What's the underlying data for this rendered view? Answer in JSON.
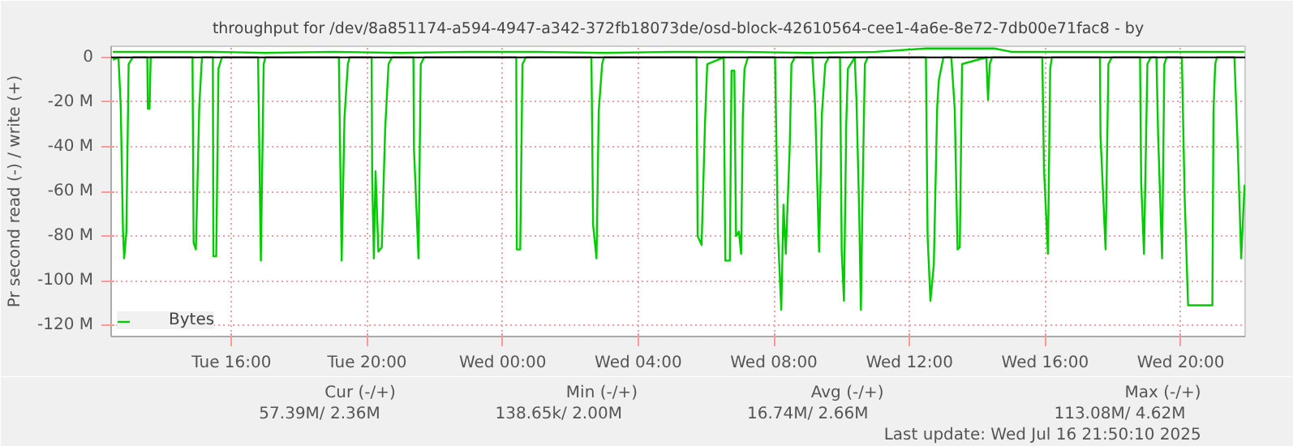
{
  "chart_data": {
    "type": "line",
    "title": "throughput for /dev/8a851174-a594-4947-a342-372fb18073de/osd-block-42610564-cee1-4a6e-8e72-7db00e71fac8 - by",
    "ylabel": "Pr second read (-) / write (+)",
    "xlim": [
      "2025-07-15T12:27",
      "2025-07-16T21:54"
    ],
    "xticks": [
      {
        "value": "2025-07-15T16:00",
        "label": "Tue 16:00"
      },
      {
        "value": "2025-07-15T20:00",
        "label": "Tue 20:00"
      },
      {
        "value": "2025-07-16T00:00",
        "label": "Wed 00:00"
      },
      {
        "value": "2025-07-16T04:00",
        "label": "Wed 04:00"
      },
      {
        "value": "2025-07-16T08:00",
        "label": "Wed 08:00"
      },
      {
        "value": "2025-07-16T12:00",
        "label": "Wed 12:00"
      },
      {
        "value": "2025-07-16T16:00",
        "label": "Wed 16:00"
      },
      {
        "value": "2025-07-16T20:00",
        "label": "Wed 20:00"
      }
    ],
    "ylim": [
      -125,
      5
    ],
    "yticks": [
      {
        "value": -120,
        "label": "-120 M"
      },
      {
        "value": -100,
        "label": "-100 M"
      },
      {
        "value": -80,
        "label": "-80 M"
      },
      {
        "value": -60,
        "label": "-60 M"
      },
      {
        "value": -40,
        "label": "-40 M"
      },
      {
        "value": -20,
        "label": "-20 M"
      },
      0
    ],
    "grid": true,
    "legend": "bottom left",
    "line_style": "solid",
    "marker": "none",
    "ref_lines": [
      {
        "axis": "y",
        "value": 0,
        "color": "#000000"
      }
    ],
    "series": [
      {
        "name": "Bytes",
        "color": "#00cc00",
        "x": [
          "2025-07-15T12:30",
          "2025-07-15T12:40",
          "2025-07-15T12:44",
          "2025-07-15T12:48",
          "2025-07-15T12:50",
          "2025-07-15T12:54",
          "2025-07-15T12:58",
          "2025-07-15T13:05",
          "2025-07-15T13:31",
          "2025-07-15T13:32",
          "2025-07-15T13:35",
          "2025-07-15T13:37",
          "2025-07-15T14:51",
          "2025-07-15T14:53",
          "2025-07-15T14:57",
          "2025-07-15T15:03",
          "2025-07-15T15:07",
          "2025-07-15T15:08",
          "2025-07-15T15:27",
          "2025-07-15T15:28",
          "2025-07-15T15:33",
          "2025-07-15T15:37",
          "2025-07-15T15:43",
          "2025-07-15T16:47",
          "2025-07-15T16:52",
          "2025-07-15T16:57",
          "2025-07-15T17:00",
          "2025-07-15T19:10",
          "2025-07-15T19:15",
          "2025-07-15T19:20",
          "2025-07-15T19:26",
          "2025-07-15T19:29",
          "2025-07-15T20:08",
          "2025-07-15T20:09",
          "2025-07-15T20:12",
          "2025-07-15T20:15",
          "2025-07-15T20:20",
          "2025-07-15T20:26",
          "2025-07-15T20:32",
          "2025-07-15T20:38",
          "2025-07-15T20:44",
          "2025-07-15T21:22",
          "2025-07-15T21:23",
          "2025-07-15T21:31",
          "2025-07-15T21:35",
          "2025-07-15T21:41",
          "2025-07-16T00:24",
          "2025-07-16T00:25",
          "2025-07-16T00:31",
          "2025-07-16T00:35",
          "2025-07-16T00:41",
          "2025-07-16T02:37",
          "2025-07-16T02:40",
          "2025-07-16T02:46",
          "2025-07-16T02:50",
          "2025-07-16T02:56",
          "2025-07-16T02:59",
          "2025-07-16T05:43",
          "2025-07-16T05:45",
          "2025-07-16T05:52",
          "2025-07-16T05:58",
          "2025-07-16T06:02",
          "2025-07-16T06:31",
          "2025-07-16T06:34",
          "2025-07-16T06:42",
          "2025-07-16T06:45",
          "2025-07-16T06:50",
          "2025-07-16T06:53",
          "2025-07-16T06:58",
          "2025-07-16T07:02",
          "2025-07-16T07:05",
          "2025-07-16T07:08",
          "2025-07-16T07:14",
          "2025-07-16T08:02",
          "2025-07-16T08:07",
          "2025-07-16T08:13",
          "2025-07-16T08:17",
          "2025-07-16T08:21",
          "2025-07-16T08:28",
          "2025-07-16T08:31",
          "2025-07-16T08:37",
          "2025-07-16T09:08",
          "2025-07-16T09:13",
          "2025-07-16T09:20",
          "2025-07-16T09:25",
          "2025-07-16T09:31",
          "2025-07-16T09:37",
          "2025-07-16T09:57",
          "2025-07-16T10:00",
          "2025-07-16T10:04",
          "2025-07-16T10:08",
          "2025-07-16T10:11",
          "2025-07-16T10:23",
          "2025-07-16T10:26",
          "2025-07-16T10:31",
          "2025-07-16T10:34",
          "2025-07-16T10:37",
          "2025-07-16T10:41",
          "2025-07-16T10:46",
          "2025-07-16T12:29",
          "2025-07-16T12:32",
          "2025-07-16T12:37",
          "2025-07-16T12:43",
          "2025-07-16T12:49",
          "2025-07-16T12:52",
          "2025-07-16T13:00",
          "2025-07-16T13:14",
          "2025-07-16T13:20",
          "2025-07-16T13:25",
          "2025-07-16T13:29",
          "2025-07-16T13:33",
          "2025-07-16T14:16",
          "2025-07-16T14:19",
          "2025-07-16T14:22",
          "2025-07-16T14:26",
          "2025-07-16T15:55",
          "2025-07-16T15:58",
          "2025-07-16T16:05",
          "2025-07-16T16:09",
          "2025-07-16T16:12",
          "2025-07-16T17:37",
          "2025-07-16T17:38",
          "2025-07-16T17:47",
          "2025-07-16T17:52",
          "2025-07-16T17:58",
          "2025-07-16T18:48",
          "2025-07-16T18:50",
          "2025-07-16T18:55",
          "2025-07-16T19:01",
          "2025-07-16T19:07",
          "2025-07-16T19:17",
          "2025-07-16T19:20",
          "2025-07-16T19:27",
          "2025-07-16T19:31",
          "2025-07-16T19:35",
          "2025-07-16T20:02",
          "2025-07-16T20:07",
          "2025-07-16T20:13",
          "2025-07-16T20:56",
          "2025-07-16T20:58",
          "2025-07-16T21:01",
          "2025-07-16T21:04",
          "2025-07-16T21:35",
          "2025-07-16T21:41",
          "2025-07-16T21:47",
          "2025-07-16T21:53"
        ],
        "values": [
          -1,
          0,
          -22,
          -78,
          -90,
          -78,
          -3,
          0,
          0,
          -23,
          -23,
          0,
          0,
          -83,
          -86,
          -22,
          -3,
          0,
          0,
          -89,
          -89,
          -5,
          0,
          0,
          -91,
          -3,
          0,
          0,
          -91,
          -27,
          -3,
          0,
          0,
          -53,
          -90,
          -51,
          -87,
          -85,
          -32,
          -3,
          0,
          0,
          -41,
          -90,
          -3,
          0,
          0,
          -86,
          -86,
          -3,
          0,
          0,
          -75,
          -90,
          -24,
          -3,
          0,
          0,
          -80,
          -84,
          -30,
          -3,
          0,
          -91,
          -91,
          -6,
          -6,
          -80,
          -78,
          -88,
          -26,
          -5,
          0,
          0,
          -78,
          -113,
          -66,
          -88,
          -40,
          -3,
          0,
          0,
          -22,
          -87,
          -25,
          -3,
          0,
          0,
          -87,
          -109,
          -30,
          -5,
          0,
          -18,
          -70,
          -113,
          -60,
          -3,
          0,
          0,
          -80,
          -109,
          -93,
          -22,
          -10,
          0,
          0,
          -23,
          -86,
          -85,
          -3,
          0,
          -19,
          -3,
          0,
          0,
          -50,
          -88,
          -5,
          0,
          0,
          -35,
          -86,
          -3,
          0,
          0,
          -56,
          -88,
          -3,
          0,
          0,
          -35,
          -90,
          -3,
          0,
          0,
          -63,
          -111,
          -111,
          -24,
          -3,
          0,
          0,
          -41,
          -90,
          -57
        ]
      },
      {
        "color": "#00cc00",
        "x": [
          "2025-07-15T12:30",
          "2025-07-15T14:00",
          "2025-07-15T15:30",
          "2025-07-15T17:00",
          "2025-07-15T19:00",
          "2025-07-15T21:00",
          "2025-07-15T23:00",
          "2025-07-16T01:00",
          "2025-07-16T03:00",
          "2025-07-16T05:00",
          "2025-07-16T07:00",
          "2025-07-16T09:00",
          "2025-07-16T11:00",
          "2025-07-16T12:30",
          "2025-07-16T14:30",
          "2025-07-16T15:00",
          "2025-07-16T17:00",
          "2025-07-16T19:00",
          "2025-07-16T21:53"
        ],
        "values": [
          2.5,
          2.5,
          2.5,
          2.0,
          2.5,
          2.0,
          2.5,
          2.5,
          2.0,
          2.5,
          2.5,
          2.0,
          2.5,
          4.0,
          4.0,
          2.5,
          2.5,
          2.5,
          2.5
        ]
      }
    ],
    "annotations": [
      "Cur (-/+)",
      "Min (-/+)",
      "Avg (-/+)",
      "Max (-/+)",
      "57.39M/    2.36M",
      "138.65k/    2.00M",
      "16.74M/    2.66M",
      "113.08M/    4.62M",
      "Last update: Wed Jul 16 21:50:10 2025"
    ]
  }
}
